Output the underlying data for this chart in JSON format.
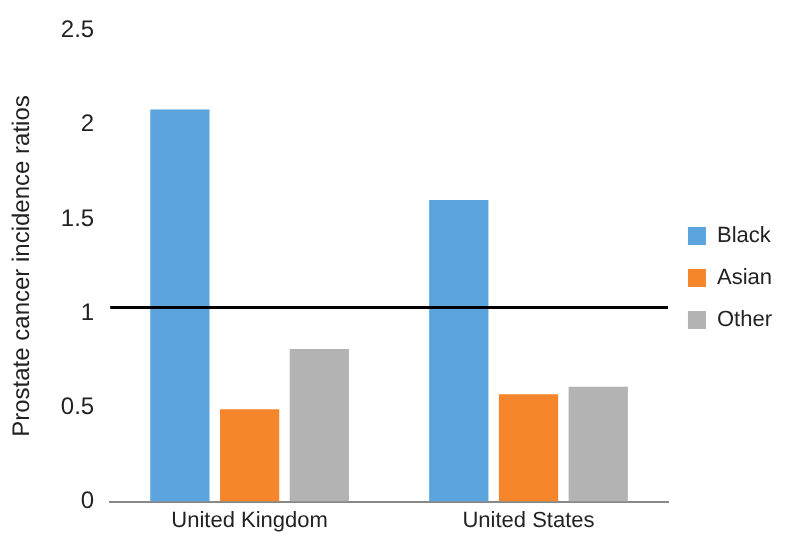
{
  "chart_data": {
    "type": "bar",
    "ylabel": "Prostate cancer incidence ratios",
    "categories": [
      "United Kingdom",
      "United States"
    ],
    "series": [
      {
        "name": "Black",
        "color": "#5ba4de",
        "values": [
          2.08,
          1.6
        ]
      },
      {
        "name": "Asian",
        "color": "#f5862b",
        "values": [
          0.49,
          0.57
        ]
      },
      {
        "name": "Other",
        "color": "#b3b3b3",
        "values": [
          0.81,
          0.61
        ]
      }
    ],
    "ylim": [
      0,
      2.5
    ],
    "yticks": [
      0,
      0.5,
      1,
      1.5,
      2,
      2.5
    ],
    "grid": false,
    "legend": "right",
    "ref_lines": [
      {
        "axis": "y",
        "value": 1.03,
        "color": "#000000"
      }
    ]
  }
}
